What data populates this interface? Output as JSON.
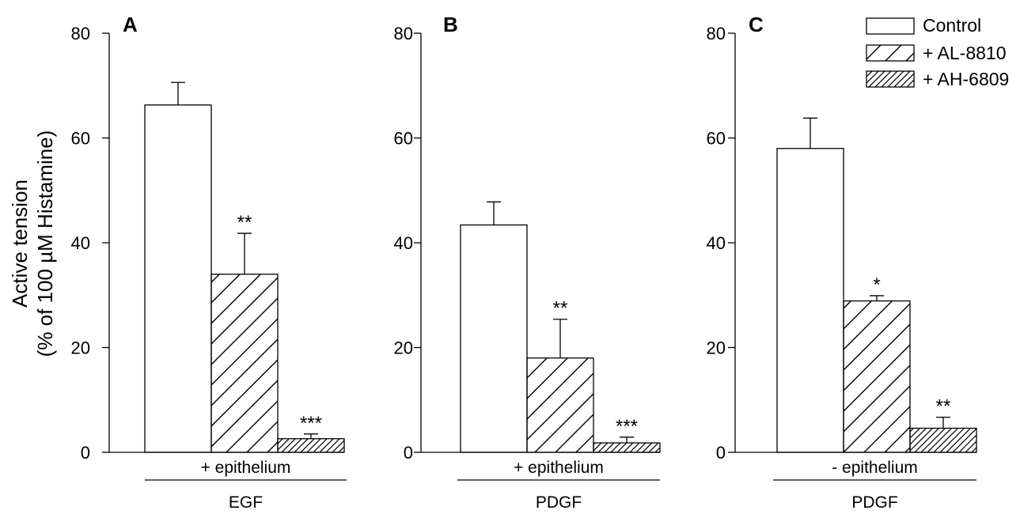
{
  "figure": {
    "ylabel_line1": "Active tension",
    "ylabel_line2": "(% of 100 µM Histamine)",
    "legend": [
      {
        "label": "Control",
        "pattern": "none"
      },
      {
        "label": "+ AL-8810",
        "pattern": "sparse-hatch"
      },
      {
        "label": "+ AH-6809",
        "pattern": "dense-hatch"
      }
    ]
  },
  "chart_data": [
    {
      "type": "bar",
      "panel": "A",
      "condition": "+ epithelium",
      "growth_factor": "EGF",
      "categories": [
        "Control",
        "+ AL-8810",
        "+ AH-6809"
      ],
      "values": [
        66.3,
        34.0,
        2.6
      ],
      "errors": [
        4.3,
        7.8,
        0.9
      ],
      "significance": [
        "",
        "**",
        "***"
      ],
      "ylim": [
        0,
        80
      ],
      "yticks": [
        0,
        20,
        40,
        60,
        80
      ],
      "legend": [
        "Control",
        "+ AL-8810",
        "+ AH-6809"
      ]
    },
    {
      "type": "bar",
      "panel": "B",
      "condition": "+ epithelium",
      "growth_factor": "PDGF",
      "categories": [
        "Control",
        "+ AL-8810",
        "+ AH-6809"
      ],
      "values": [
        43.4,
        18.0,
        1.8
      ],
      "errors": [
        4.4,
        7.4,
        1.1
      ],
      "significance": [
        "",
        "**",
        "***"
      ],
      "ylim": [
        0,
        80
      ],
      "yticks": [
        0,
        20,
        40,
        60,
        80
      ],
      "legend": [
        "Control",
        "+ AL-8810",
        "+ AH-6809"
      ]
    },
    {
      "type": "bar",
      "panel": "C",
      "condition": "- epithelium",
      "growth_factor": "PDGF",
      "categories": [
        "Control",
        "+ AL-8810",
        "+ AH-6809"
      ],
      "values": [
        58.0,
        28.9,
        4.6
      ],
      "errors": [
        5.8,
        1.0,
        2.1
      ],
      "significance": [
        "",
        "*",
        "**"
      ],
      "ylim": [
        0,
        80
      ],
      "yticks": [
        0,
        20,
        40,
        60,
        80
      ],
      "legend": [
        "Control",
        "+ AL-8810",
        "+ AH-6809"
      ]
    }
  ]
}
